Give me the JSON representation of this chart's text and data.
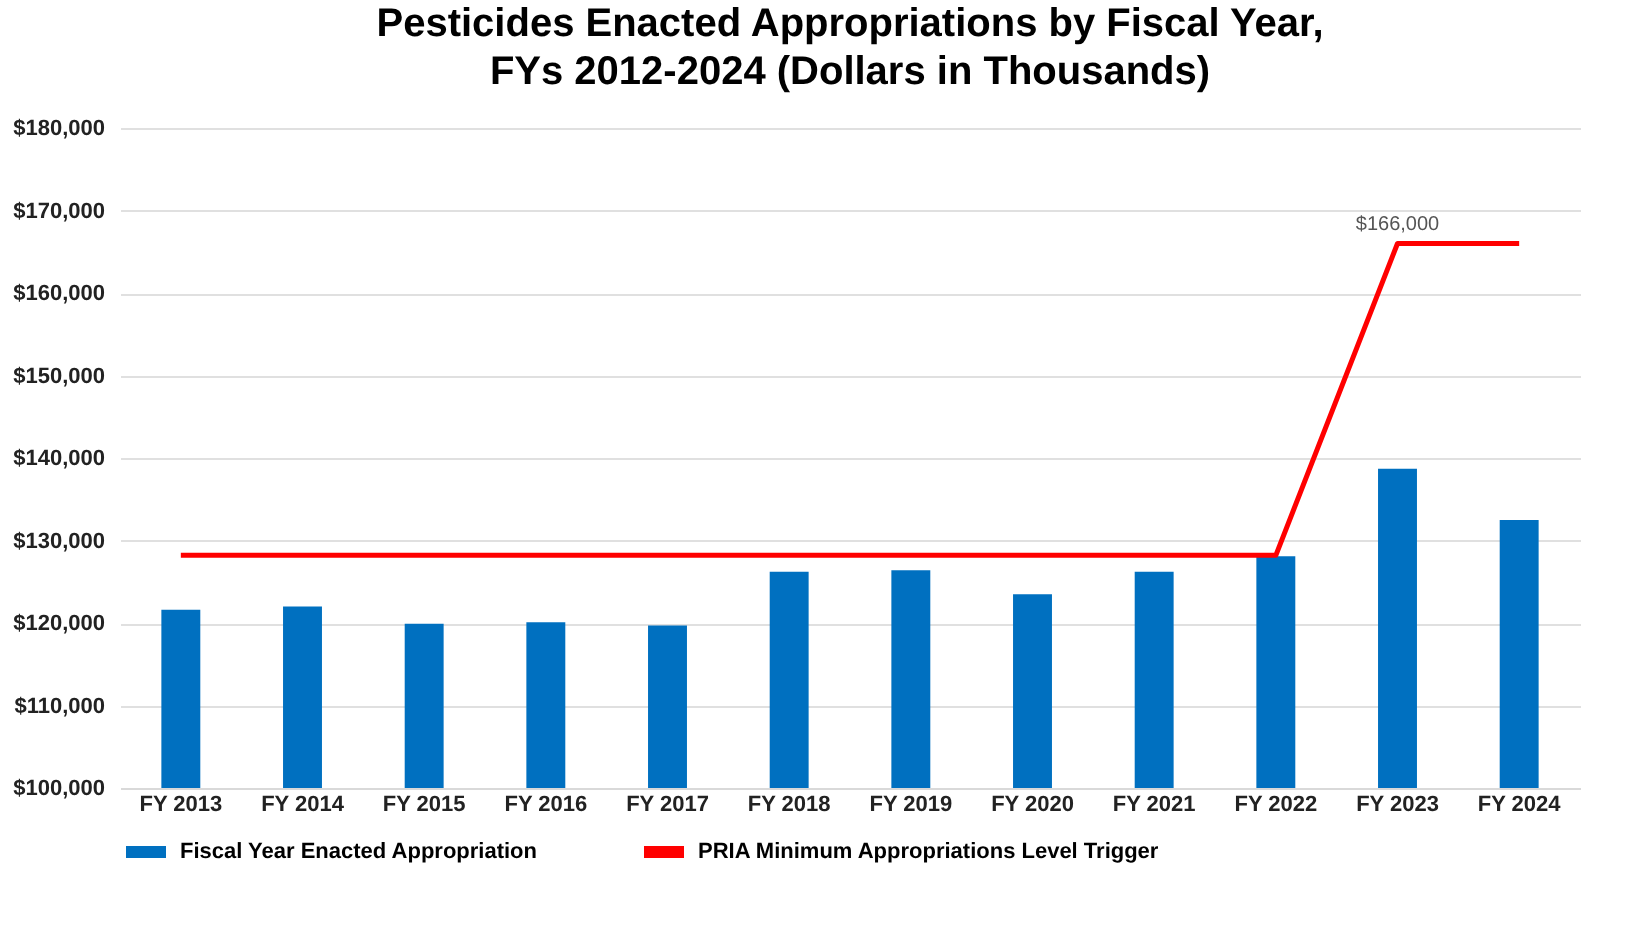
{
  "chart_data": {
    "type": "bar",
    "title": "Pesticides Enacted Appropriations by Fiscal Year, FYs 2012-2024 (Dollars in Thousands)",
    "categories": [
      "FY 2013",
      "FY 2014",
      "FY 2015",
      "FY 2016",
      "FY 2017",
      "FY 2018",
      "FY 2019",
      "FY 2020",
      "FY 2021",
      "FY 2022",
      "FY 2023",
      "FY 2024"
    ],
    "series": [
      {
        "name": "Fiscal Year Enacted Appropriation",
        "color": "#0070c0",
        "values": [
          121600,
          122000,
          119900,
          120100,
          119700,
          126200,
          126400,
          123500,
          126200,
          128100,
          138700,
          132500
        ]
      },
      {
        "name": "PRIA Minimum Appropriations Level Trigger",
        "type": "line",
        "color": "#ff0000",
        "values": [
          128200,
          128200,
          128200,
          128200,
          128200,
          128200,
          128200,
          128200,
          128200,
          128200,
          166000,
          166000
        ]
      }
    ],
    "annotations": [
      {
        "text": "$166,000",
        "x": "FY 2023",
        "y": 166000
      }
    ],
    "ylim": [
      100000,
      180000
    ],
    "yticks": [
      {
        "value": 100000,
        "label": "$100,000"
      },
      {
        "value": 110000,
        "label": "$110,000"
      },
      {
        "value": 120000,
        "label": "$120,000"
      },
      {
        "value": 130000,
        "label": "$130,000"
      },
      {
        "value": 140000,
        "label": "$140,000"
      },
      {
        "value": 150000,
        "label": "$150,000"
      },
      {
        "value": 160000,
        "label": "$160,000"
      },
      {
        "value": 170000,
        "label": "$170,000"
      },
      {
        "value": 180000,
        "label": "$180,000"
      }
    ],
    "grid": "y",
    "legend": "bottom",
    "marker": "none",
    "line_style": "solid"
  }
}
